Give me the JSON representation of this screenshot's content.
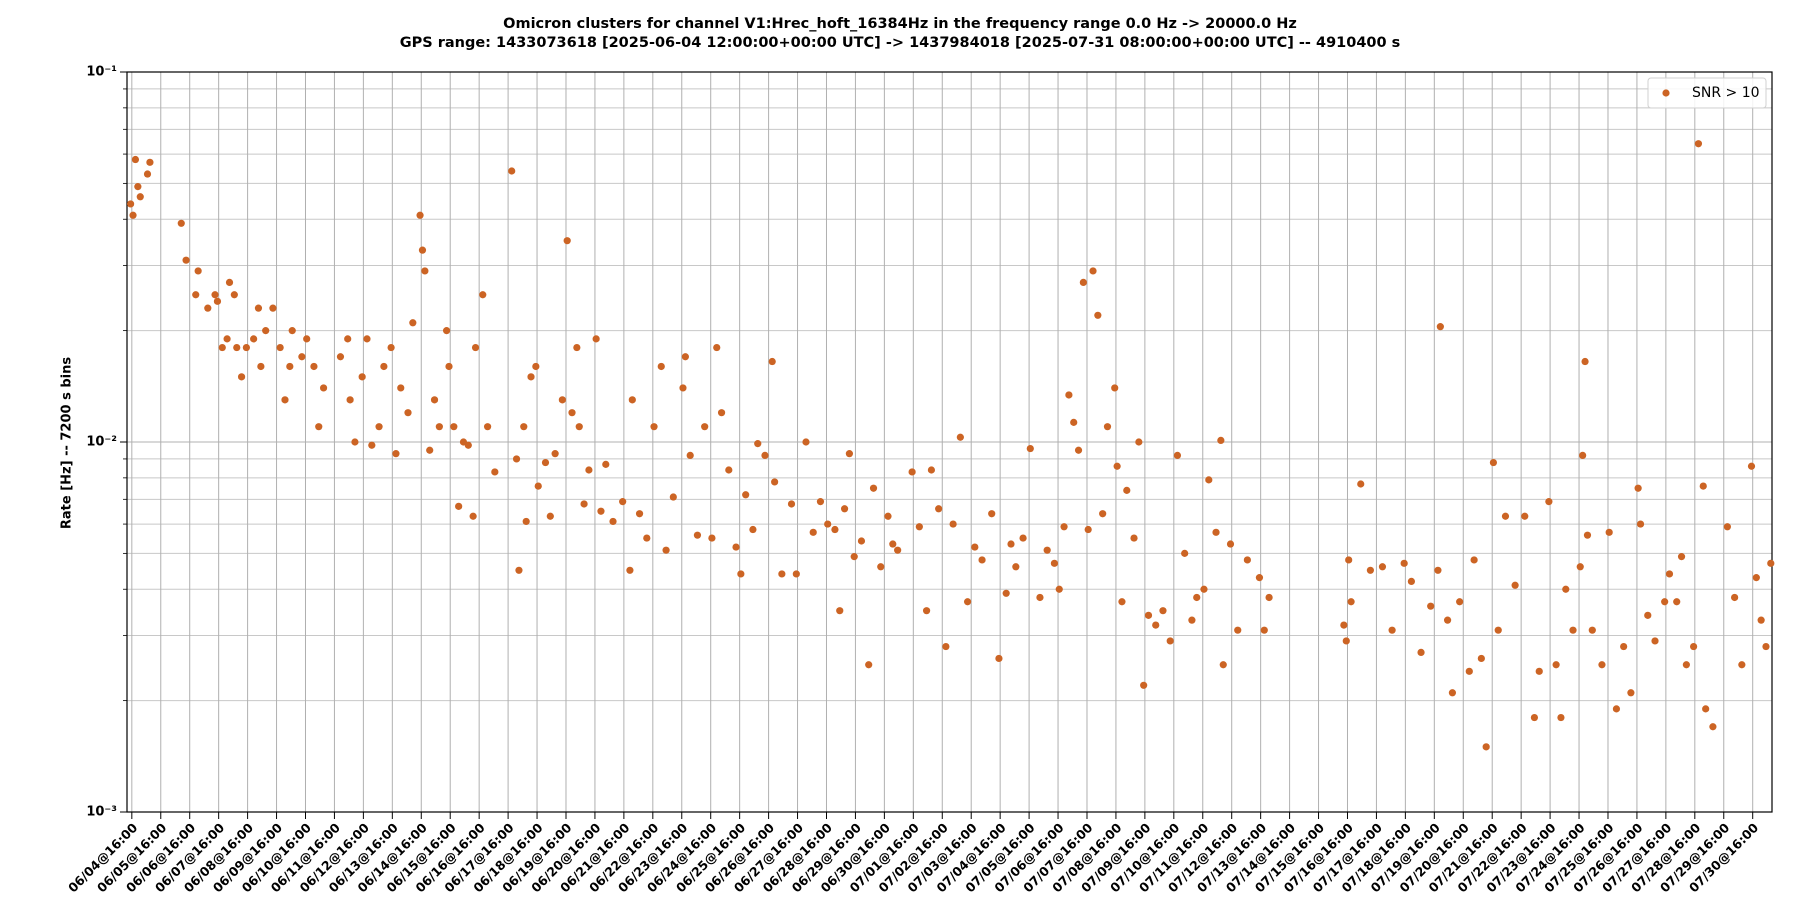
{
  "chart_data": {
    "type": "scatter",
    "title": "Omicron clusters for channel V1:Hrec_hoft_16384Hz in the frequency range 0.0 Hz -> 20000.0 Hz",
    "subtitle": "GPS range: 1433073618 [2025-06-04 12:00:00+00:00 UTC] -> 1437984018 [2025-07-31 08:00:00+00:00 UTC] -- 4910400 s",
    "y_label": "Rate [Hz] -- 7200 s bins",
    "xlim": [
      1433073618,
      1437984018
    ],
    "ylim": [
      0.001,
      0.1
    ],
    "log_y": true,
    "grid": true,
    "legend_position": "upper right",
    "yticks": [
      {
        "value": 0.001,
        "label": "10⁻³"
      },
      {
        "value": 0.01,
        "label": "10⁻²"
      },
      {
        "value": 0.1,
        "label": "10⁻¹"
      }
    ],
    "yminorticks": [
      0.002,
      0.003,
      0.004,
      0.005,
      0.006,
      0.007,
      0.008,
      0.009,
      0.02,
      0.03,
      0.04,
      0.05,
      0.06,
      0.07,
      0.08,
      0.09
    ],
    "xticks": [
      {
        "value": 1433088018,
        "label": "06/04@16:00"
      },
      {
        "value": 1433174418,
        "label": "06/05@16:00"
      },
      {
        "value": 1433260818,
        "label": "06/06@16:00"
      },
      {
        "value": 1433347218,
        "label": "06/07@16:00"
      },
      {
        "value": 1433433618,
        "label": "06/08@16:00"
      },
      {
        "value": 1433520018,
        "label": "06/09@16:00"
      },
      {
        "value": 1433606418,
        "label": "06/10@16:00"
      },
      {
        "value": 1433692818,
        "label": "06/11@16:00"
      },
      {
        "value": 1433779218,
        "label": "06/12@16:00"
      },
      {
        "value": 1433865618,
        "label": "06/13@16:00"
      },
      {
        "value": 1433952018,
        "label": "06/14@16:00"
      },
      {
        "value": 1434038418,
        "label": "06/15@16:00"
      },
      {
        "value": 1434124818,
        "label": "06/16@16:00"
      },
      {
        "value": 1434211218,
        "label": "06/17@16:00"
      },
      {
        "value": 1434297618,
        "label": "06/18@16:00"
      },
      {
        "value": 1434384018,
        "label": "06/19@16:00"
      },
      {
        "value": 1434470418,
        "label": "06/20@16:00"
      },
      {
        "value": 1434556818,
        "label": "06/21@16:00"
      },
      {
        "value": 1434643218,
        "label": "06/22@16:00"
      },
      {
        "value": 1434729618,
        "label": "06/23@16:00"
      },
      {
        "value": 1434816018,
        "label": "06/24@16:00"
      },
      {
        "value": 1434902418,
        "label": "06/25@16:00"
      },
      {
        "value": 1434988818,
        "label": "06/26@16:00"
      },
      {
        "value": 1435075218,
        "label": "06/27@16:00"
      },
      {
        "value": 1435161618,
        "label": "06/28@16:00"
      },
      {
        "value": 1435248018,
        "label": "06/29@16:00"
      },
      {
        "value": 1435334418,
        "label": "06/30@16:00"
      },
      {
        "value": 1435420818,
        "label": "07/01@16:00"
      },
      {
        "value": 1435507218,
        "label": "07/02@16:00"
      },
      {
        "value": 1435593618,
        "label": "07/03@16:00"
      },
      {
        "value": 1435680018,
        "label": "07/04@16:00"
      },
      {
        "value": 1435766418,
        "label": "07/05@16:00"
      },
      {
        "value": 1435852818,
        "label": "07/06@16:00"
      },
      {
        "value": 1435939218,
        "label": "07/07@16:00"
      },
      {
        "value": 1436025618,
        "label": "07/08@16:00"
      },
      {
        "value": 1436112018,
        "label": "07/09@16:00"
      },
      {
        "value": 1436198418,
        "label": "07/10@16:00"
      },
      {
        "value": 1436284818,
        "label": "07/11@16:00"
      },
      {
        "value": 1436371218,
        "label": "07/12@16:00"
      },
      {
        "value": 1436457618,
        "label": "07/13@16:00"
      },
      {
        "value": 1436544018,
        "label": "07/14@16:00"
      },
      {
        "value": 1436630418,
        "label": "07/15@16:00"
      },
      {
        "value": 1436716818,
        "label": "07/16@16:00"
      },
      {
        "value": 1436803218,
        "label": "07/17@16:00"
      },
      {
        "value": 1436889618,
        "label": "07/18@16:00"
      },
      {
        "value": 1436976018,
        "label": "07/19@16:00"
      },
      {
        "value": 1437062418,
        "label": "07/20@16:00"
      },
      {
        "value": 1437148818,
        "label": "07/21@16:00"
      },
      {
        "value": 1437235218,
        "label": "07/22@16:00"
      },
      {
        "value": 1437321618,
        "label": "07/23@16:00"
      },
      {
        "value": 1437408018,
        "label": "07/24@16:00"
      },
      {
        "value": 1437494418,
        "label": "07/25@16:00"
      },
      {
        "value": 1437580818,
        "label": "07/26@16:00"
      },
      {
        "value": 1437667218,
        "label": "07/27@16:00"
      },
      {
        "value": 1437753618,
        "label": "07/28@16:00"
      },
      {
        "value": 1437840018,
        "label": "07/29@16:00"
      },
      {
        "value": 1437926418,
        "label": "07/30@16:00"
      }
    ],
    "x": [
      1433084418,
      1433091618,
      1433098818,
      1433106018,
      1433113218,
      1433134818,
      1433142018,
      1433235618,
      1433250018,
      1433278818,
      1433286018,
      1433314818,
      1433336418,
      1433343618,
      1433358018,
      1433372418,
      1433379618,
      1433394018,
      1433401218,
      1433415618,
      1433430018,
      1433451618,
      1433466018,
      1433473218,
      1433487618,
      1433509218,
      1433530818,
      1433545218,
      1433559618,
      1433566818,
      1433595618,
      1433610018,
      1433631618,
      1433646018,
      1433660418,
      1433710818,
      1433732418,
      1433739618,
      1433754018,
      1433775618,
      1433790018,
      1433804418,
      1433826018,
      1433840418,
      1433862018,
      1433876418,
      1433890818,
      1433912418,
      1433926818,
      1433948418,
      1433955618,
      1433962818,
      1433977218,
      1433991618,
      1434006018,
      1434027618,
      1434034818,
      1434049218,
      1434063618,
      1434078018,
      1434092418,
      1434106818,
      1434114018,
      1434135618,
      1434150018,
      1434171618,
      1434222018,
      1434236418,
      1434243618,
      1434258018,
      1434265218,
      1434279618,
      1434294018,
      1434301218,
      1434322818,
      1434337218,
      1434351618,
      1434373218,
      1434387618,
      1434402018,
      1434416418,
      1434423618,
      1434438018,
      1434452418,
      1434474018,
      1434488418,
      1434502818,
      1434524418,
      1434553218,
      1434574818,
      1434582018,
      1434603618,
      1434625218,
      1434646818,
      1434668418,
      1434682818,
      1434704418,
      1434733218,
      1434740418,
      1434754818,
      1434776418,
      1434798018,
      1434819618,
      1434834018,
      1434848418,
      1434870018,
      1434891618,
      1434906018,
      1434920418,
      1434942018,
      1434956418,
      1434978018,
      1434999618,
      1435006818,
      1435028418,
      1435057218,
      1435071618,
      1435100418,
      1435122018,
      1435143618,
      1435165218,
      1435186818,
      1435201218,
      1435215618,
      1435230018,
      1435244418,
      1435266018,
      1435287618,
      1435302018,
      1435323618,
      1435345218,
      1435359618,
      1435374018,
      1435417218,
      1435438818,
      1435460418,
      1435474818,
      1435496418,
      1435518018,
      1435539618,
      1435561218,
      1435582818,
      1435604418,
      1435626018,
      1435654818,
      1435676418,
      1435698018,
      1435712418,
      1435726818,
      1435748418,
      1435770018,
      1435798818,
      1435820418,
      1435842018,
      1435856418,
      1435870818,
      1435885218,
      1435899618,
      1435914018,
      1435928418,
      1435942818,
      1435957218,
      1435971618,
      1435986018,
      1436000418,
      1436022018,
      1436029218,
      1436043618,
      1436058018,
      1436079618,
      1436094018,
      1436108418,
      1436122818,
      1436144418,
      1436166018,
      1436187618,
      1436209218,
      1436230818,
      1436252418,
      1436266818,
      1436288418,
      1436302818,
      1436324418,
      1436338818,
      1436346018,
      1436367618,
      1436389218,
      1436418018,
      1436454018,
      1436468418,
      1436482818,
      1436706018,
      1436713218,
      1436720418,
      1436727618,
      1436756418,
      1436785218,
      1436821218,
      1436850018,
      1436886018,
      1436907618,
      1436936418,
      1436965218,
      1436986818,
      1436994018,
      1437015618,
      1437030018,
      1437051618,
      1437080418,
      1437094818,
      1437116418,
      1437130818,
      1437152418,
      1437166818,
      1437188418,
      1437217218,
      1437246018,
      1437274818,
      1437289218,
      1437318018,
      1437339618,
      1437354018,
      1437368418,
      1437390018,
      1437411618,
      1437418818,
      1437426018,
      1437433218,
      1437447618,
      1437476418,
      1437498018,
      1437519618,
      1437541218,
      1437562818,
      1437584418,
      1437591618,
      1437613218,
      1437634818,
      1437663618,
      1437678018,
      1437699618,
      1437714018,
      1437728418,
      1437750018,
      1437764418,
      1437778818,
      1437786018,
      1437807618,
      1437850818,
      1437872418,
      1437894018,
      1437922818,
      1437937218,
      1437951618,
      1437966018,
      1437980418
    ],
    "series": [
      {
        "name": "SNR > 10",
        "color": "#cc6424",
        "values": [
          0.044,
          0.041,
          0.058,
          0.049,
          0.046,
          0.053,
          0.057,
          0.039,
          0.031,
          0.025,
          0.029,
          0.023,
          0.025,
          0.024,
          0.018,
          0.019,
          0.027,
          0.025,
          0.018,
          0.015,
          0.018,
          0.019,
          0.023,
          0.016,
          0.02,
          0.023,
          0.018,
          0.013,
          0.016,
          0.02,
          0.017,
          0.019,
          0.016,
          0.011,
          0.014,
          0.017,
          0.019,
          0.013,
          0.01,
          0.015,
          0.019,
          0.0098,
          0.011,
          0.016,
          0.018,
          0.0093,
          0.014,
          0.012,
          0.021,
          0.041,
          0.033,
          0.029,
          0.0095,
          0.013,
          0.011,
          0.02,
          0.016,
          0.011,
          0.0067,
          0.01,
          0.0098,
          0.0063,
          0.018,
          0.025,
          0.011,
          0.0083,
          0.054,
          0.009,
          0.0045,
          0.011,
          0.0061,
          0.015,
          0.016,
          0.0076,
          0.0088,
          0.0063,
          0.0093,
          0.013,
          0.035,
          0.012,
          0.018,
          0.011,
          0.0068,
          0.0084,
          0.019,
          0.0065,
          0.0087,
          0.0061,
          0.0069,
          0.0045,
          0.013,
          0.0064,
          0.0055,
          0.011,
          0.016,
          0.0051,
          0.0071,
          0.014,
          0.017,
          0.0092,
          0.0056,
          0.011,
          0.0055,
          0.018,
          0.012,
          0.0084,
          0.0052,
          0.0044,
          0.0072,
          0.0058,
          0.0099,
          0.0092,
          0.0165,
          0.0078,
          0.0044,
          0.0068,
          0.0044,
          0.01,
          0.0057,
          0.0069,
          0.006,
          0.0058,
          0.0035,
          0.0066,
          0.0093,
          0.0049,
          0.0054,
          0.0025,
          0.0075,
          0.0046,
          0.0063,
          0.0053,
          0.0051,
          0.0083,
          0.0059,
          0.0035,
          0.0084,
          0.0066,
          0.0028,
          0.006,
          0.0103,
          0.0037,
          0.0052,
          0.0048,
          0.0064,
          0.0026,
          0.0039,
          0.0053,
          0.0046,
          0.0055,
          0.0096,
          0.0038,
          0.0051,
          0.0047,
          0.004,
          0.0059,
          0.0134,
          0.0113,
          0.0095,
          0.027,
          0.0058,
          0.029,
          0.022,
          0.0064,
          0.011,
          0.014,
          0.0086,
          0.0037,
          0.0074,
          0.0055,
          0.01,
          0.0022,
          0.0034,
          0.0032,
          0.0035,
          0.0029,
          0.0092,
          0.005,
          0.0033,
          0.0038,
          0.004,
          0.0079,
          0.0057,
          0.0101,
          0.0025,
          0.0053,
          0.0031,
          0.0048,
          0.0043,
          0.0031,
          0.0038,
          0.0032,
          0.0029,
          0.0048,
          0.0037,
          0.0077,
          0.0045,
          0.0046,
          0.0031,
          0.0047,
          0.0042,
          0.0027,
          0.0036,
          0.0045,
          0.0205,
          0.0033,
          0.0021,
          0.0037,
          0.0024,
          0.0048,
          0.0026,
          0.0015,
          0.0088,
          0.0031,
          0.0063,
          0.0041,
          0.0063,
          0.0018,
          0.0024,
          0.0069,
          0.0025,
          0.0018,
          0.004,
          0.0031,
          0.0046,
          0.0092,
          0.0165,
          0.0056,
          0.0031,
          0.0025,
          0.0057,
          0.0019,
          0.0028,
          0.0021,
          0.0075,
          0.006,
          0.0034,
          0.0029,
          0.0037,
          0.0044,
          0.0037,
          0.0049,
          0.0025,
          0.0028,
          0.064,
          0.0076,
          0.0019,
          0.0017,
          0.0059,
          0.0038,
          0.0025,
          0.0086,
          0.0043,
          0.0033,
          0.0028,
          0.0047
        ]
      }
    ]
  }
}
